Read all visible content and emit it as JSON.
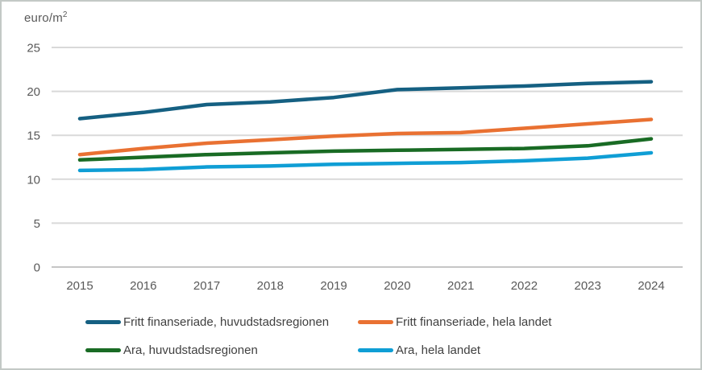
{
  "title": {
    "base": "euro/m",
    "sup": "2"
  },
  "colors": {
    "background": "#FFFFFF",
    "frame_border": "#C3C9C6",
    "gridline": "#D9D9D9",
    "axis_line": "#C6C6C6",
    "axis_text": "#595959",
    "legend_text": "#404040"
  },
  "chart_data": {
    "type": "line",
    "title": "euro/m²",
    "ylabel": "euro/m²",
    "xlabel": "",
    "x": [
      2015,
      2016,
      2017,
      2018,
      2019,
      2020,
      2021,
      2022,
      2023,
      2024
    ],
    "ylim": [
      0,
      25
    ],
    "ytick_interval": 5,
    "yticks": [
      0,
      5,
      10,
      15,
      20,
      25
    ],
    "grid": "horizontal",
    "legend_position": "bottom",
    "series": [
      {
        "name": "Fritt finanseriade, huvudstadsregionen",
        "color": "#156082",
        "values": [
          16.9,
          17.6,
          18.5,
          18.8,
          19.3,
          20.2,
          20.4,
          20.6,
          20.9,
          21.1
        ]
      },
      {
        "name": "Fritt finanseriade, hela landet",
        "color": "#E97132",
        "values": [
          12.8,
          13.5,
          14.1,
          14.5,
          14.9,
          15.2,
          15.3,
          15.8,
          16.3,
          16.8
        ]
      },
      {
        "name": "Ara, huvudstadsregionen",
        "color": "#196B24",
        "values": [
          12.2,
          12.5,
          12.8,
          13.0,
          13.2,
          13.3,
          13.4,
          13.5,
          13.8,
          14.6
        ]
      },
      {
        "name": "Ara, hela landet",
        "color": "#0F9ED5",
        "values": [
          11.0,
          11.1,
          11.4,
          11.5,
          11.7,
          11.8,
          11.9,
          12.1,
          12.4,
          13.0
        ]
      }
    ]
  }
}
